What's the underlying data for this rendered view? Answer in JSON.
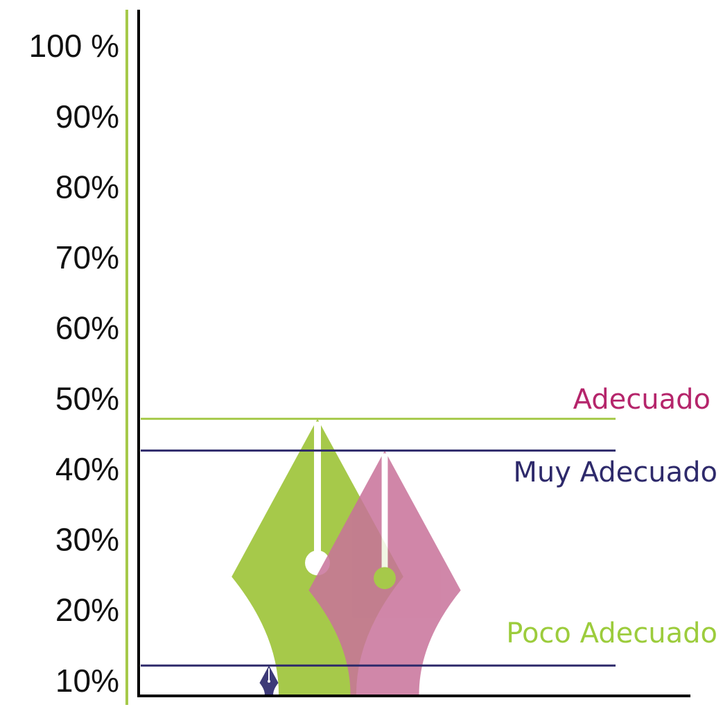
{
  "chart_data": {
    "type": "pen",
    "series": [
      {
        "name": "Poco Adecuado",
        "color": "#a6c94a",
        "line_color": "#a6c94a",
        "label_color": "#9ccc3c",
        "values": [
          47.5
        ]
      },
      {
        "name": "Adecuado",
        "color": "#c8729a",
        "line_color": "#2e2a6b",
        "label_color": "#b5256b",
        "values": [
          43
        ]
      },
      {
        "name": "Muy Adecuado",
        "color": "#3d3a78",
        "line_color": "#2e2a6b",
        "label_color": "#2e2a6b",
        "values": [
          12.5
        ]
      }
    ],
    "ylim": [
      8.2,
      100
    ],
    "yticks": [
      {
        "value": 100,
        "label": "100 %"
      },
      {
        "value": 90,
        "label": "90%"
      },
      {
        "value": 80,
        "label": "80%"
      },
      {
        "value": 70,
        "label": "70%"
      },
      {
        "value": 60,
        "label": "60%"
      },
      {
        "value": 50,
        "label": "50%"
      },
      {
        "value": 40,
        "label": "40%"
      },
      {
        "value": 30,
        "label": "30%"
      },
      {
        "value": 20,
        "label": "20%"
      },
      {
        "value": 10,
        "label": "10%"
      }
    ]
  }
}
